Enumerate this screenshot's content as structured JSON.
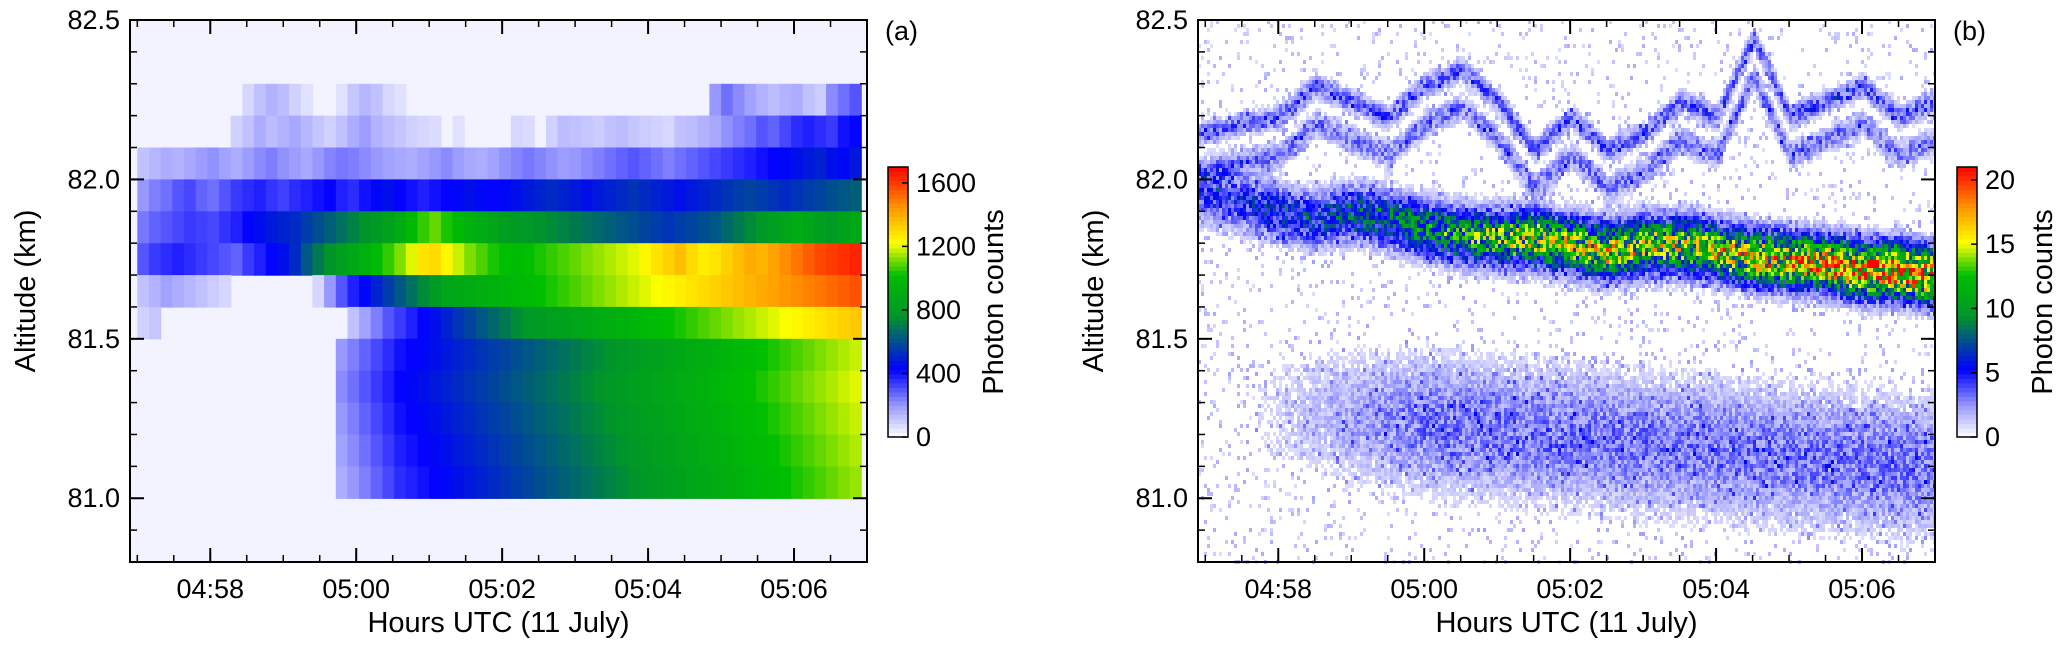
{
  "chart_data": [
    {
      "type": "heatmap",
      "panel_label": "(a)",
      "xlabel": "Hours UTC (11 July)",
      "ylabel": "Altitude (km)",
      "x_ticks": [
        "04:58",
        "05:00",
        "05:02",
        "05:04",
        "05:06"
      ],
      "x_tick_minutes": [
        298,
        300,
        302,
        304,
        306
      ],
      "xlim_minutes": [
        296.9,
        307.0
      ],
      "y_ticks": [
        "81.0",
        "81.5",
        "82.0",
        "82.5"
      ],
      "y_tick_values": [
        81.0,
        81.5,
        82.0,
        82.5
      ],
      "ylim": [
        80.8,
        82.5
      ],
      "colorbar": {
        "label": "Photon counts",
        "ticks": [
          "0",
          "400",
          "800",
          "1200",
          "1600"
        ],
        "tick_values": [
          0,
          400,
          800,
          1200,
          1600
        ],
        "range": [
          0,
          1700
        ]
      },
      "grid": false,
      "background_value": 0,
      "colors": {
        "low": "#ffffff",
        "mid_low": "#0000ff",
        "mid": "#00b000",
        "mid_high": "#ffff00",
        "high": "#ff0000"
      },
      "bin_minutes": 0.2,
      "bin_km": 0.1,
      "layers": [
        {
          "altitude_km": 82.25,
          "values": [
            0,
            0,
            0,
            0,
            0,
            0,
            0,
            0,
            0,
            80,
            120,
            150,
            130,
            90,
            60,
            0,
            0,
            60,
            110,
            140,
            120,
            80,
            60,
            0,
            0,
            0,
            0,
            0,
            0,
            0,
            0,
            0,
            0,
            0,
            0,
            0,
            0,
            0,
            0,
            0,
            0,
            0,
            0,
            0,
            0,
            0,
            0,
            0,
            0,
            200,
            260,
            220,
            180,
            150,
            130,
            150,
            160,
            120,
            100,
            220,
            260,
            300
          ]
        },
        {
          "altitude_km": 82.15,
          "values": [
            0,
            0,
            0,
            0,
            0,
            0,
            0,
            0,
            90,
            120,
            160,
            130,
            150,
            170,
            140,
            110,
            90,
            120,
            160,
            190,
            150,
            130,
            110,
            90,
            80,
            70,
            0,
            60,
            0,
            0,
            0,
            0,
            80,
            70,
            0,
            90,
            130,
            120,
            110,
            100,
            120,
            130,
            110,
            100,
            90,
            80,
            120,
            130,
            150,
            170,
            210,
            240,
            260,
            300,
            280,
            320,
            360,
            380,
            360,
            340,
            400,
            420
          ]
        },
        {
          "altitude_km": 82.05,
          "values": [
            120,
            140,
            160,
            150,
            170,
            190,
            210,
            180,
            160,
            190,
            220,
            240,
            210,
            190,
            170,
            200,
            230,
            250,
            240,
            220,
            200,
            180,
            170,
            160,
            180,
            200,
            220,
            190,
            170,
            160,
            180,
            210,
            230,
            250,
            230,
            210,
            190,
            200,
            220,
            240,
            260,
            280,
            300,
            280,
            260,
            240,
            260,
            280,
            300,
            320,
            340,
            360,
            380,
            400,
            420,
            440,
            460,
            480,
            500,
            460,
            440,
            480
          ]
        },
        {
          "altitude_km": 81.95,
          "values": [
            200,
            240,
            260,
            300,
            320,
            280,
            260,
            300,
            340,
            360,
            380,
            350,
            330,
            360,
            380,
            400,
            420,
            380,
            360,
            400,
            440,
            460,
            420,
            400,
            380,
            400,
            420,
            440,
            460,
            440,
            420,
            440,
            460,
            480,
            500,
            520,
            500,
            480,
            460,
            480,
            500,
            520,
            540,
            520,
            500,
            480,
            460,
            480,
            500,
            520,
            540,
            560,
            580,
            560,
            540,
            520,
            540,
            560,
            580,
            600,
            620,
            640
          ]
        },
        {
          "altitude_km": 81.85,
          "values": [
            250,
            280,
            300,
            320,
            340,
            330,
            320,
            350,
            380,
            420,
            450,
            480,
            500,
            520,
            560,
            600,
            640,
            680,
            720,
            760,
            800,
            840,
            900,
            980,
            1060,
            1100,
            1040,
            980,
            940,
            900,
            860,
            820,
            800,
            780,
            760,
            740,
            720,
            700,
            680,
            660,
            640,
            620,
            600,
            580,
            560,
            540,
            560,
            580,
            600,
            620,
            660,
            700,
            740,
            780,
            820,
            860,
            900,
            860,
            820,
            800,
            840,
            880
          ]
        },
        {
          "altitude_km": 81.75,
          "values": [
            300,
            340,
            360,
            380,
            360,
            340,
            320,
            300,
            280,
            340,
            380,
            420,
            460,
            520,
            620,
            700,
            760,
            820,
            880,
            940,
            1000,
            1060,
            1120,
            1200,
            1280,
            1300,
            1240,
            1180,
            1120,
            1080,
            1040,
            1020,
            1000,
            1020,
            1040,
            1060,
            1080,
            1100,
            1120,
            1140,
            1160,
            1180,
            1200,
            1240,
            1280,
            1320,
            1360,
            1300,
            1260,
            1280,
            1320,
            1360,
            1400,
            1380,
            1420,
            1460,
            1500,
            1540,
            1580,
            1600,
            1620,
            1640
          ]
        },
        {
          "altitude_km": 81.65,
          "values": [
            120,
            150,
            180,
            160,
            140,
            120,
            100,
            80,
            0,
            0,
            0,
            0,
            0,
            0,
            0,
            80,
            200,
            300,
            380,
            440,
            500,
            560,
            620,
            680,
            740,
            800,
            860,
            880,
            900,
            920,
            940,
            960,
            980,
            1000,
            1020,
            1040,
            1060,
            1080,
            1100,
            1120,
            1140,
            1160,
            1180,
            1200,
            1220,
            1240,
            1260,
            1280,
            1300,
            1320,
            1340,
            1360,
            1380,
            1400,
            1420,
            1440,
            1460,
            1480,
            1500,
            1520,
            1540,
            1560
          ]
        },
        {
          "altitude_km": 81.55,
          "values": [
            90,
            110,
            0,
            0,
            0,
            0,
            0,
            0,
            0,
            0,
            0,
            0,
            0,
            0,
            0,
            0,
            0,
            0,
            120,
            180,
            240,
            300,
            340,
            380,
            420,
            460,
            500,
            540,
            580,
            620,
            660,
            700,
            740,
            780,
            800,
            820,
            840,
            860,
            880,
            900,
            920,
            940,
            960,
            980,
            1000,
            1020,
            1040,
            1060,
            1080,
            1100,
            1120,
            1140,
            1160,
            1180,
            1200,
            1220,
            1240,
            1260,
            1280,
            1300,
            1320,
            1340
          ]
        },
        {
          "altitude_km": 81.45,
          "values": [
            0,
            0,
            0,
            0,
            0,
            0,
            0,
            0,
            0,
            0,
            0,
            0,
            0,
            0,
            0,
            0,
            0,
            200,
            240,
            280,
            320,
            360,
            400,
            420,
            440,
            460,
            480,
            500,
            520,
            540,
            560,
            580,
            600,
            620,
            640,
            660,
            680,
            700,
            720,
            740,
            760,
            780,
            800,
            820,
            840,
            860,
            880,
            900,
            920,
            940,
            960,
            980,
            1000,
            1020,
            1040,
            1060,
            1080,
            1100,
            1120,
            1140,
            1160,
            1180
          ]
        },
        {
          "altitude_km": 81.35,
          "values": [
            0,
            0,
            0,
            0,
            0,
            0,
            0,
            0,
            0,
            0,
            0,
            0,
            0,
            0,
            0,
            0,
            0,
            220,
            260,
            300,
            340,
            380,
            420,
            440,
            460,
            480,
            500,
            520,
            540,
            560,
            580,
            600,
            620,
            640,
            660,
            680,
            700,
            720,
            740,
            760,
            780,
            800,
            820,
            840,
            860,
            880,
            900,
            920,
            940,
            960,
            980,
            1000,
            1020,
            1040,
            1060,
            1080,
            1100,
            1120,
            1140,
            1160,
            1180,
            1200
          ]
        },
        {
          "altitude_km": 81.25,
          "values": [
            0,
            0,
            0,
            0,
            0,
            0,
            0,
            0,
            0,
            0,
            0,
            0,
            0,
            0,
            0,
            0,
            0,
            200,
            240,
            280,
            320,
            360,
            400,
            420,
            440,
            460,
            480,
            500,
            520,
            540,
            560,
            580,
            600,
            620,
            640,
            660,
            680,
            700,
            720,
            740,
            760,
            780,
            800,
            820,
            840,
            860,
            880,
            900,
            920,
            940,
            960,
            980,
            1000,
            1020,
            1040,
            1060,
            1080,
            1100,
            1120,
            1140,
            1160,
            1180
          ]
        },
        {
          "altitude_km": 81.15,
          "values": [
            0,
            0,
            0,
            0,
            0,
            0,
            0,
            0,
            0,
            0,
            0,
            0,
            0,
            0,
            0,
            0,
            0,
            180,
            220,
            260,
            300,
            340,
            380,
            400,
            420,
            440,
            460,
            480,
            500,
            520,
            540,
            560,
            580,
            600,
            620,
            640,
            660,
            680,
            700,
            720,
            740,
            760,
            780,
            800,
            820,
            840,
            860,
            880,
            900,
            920,
            940,
            960,
            980,
            1000,
            1020,
            1040,
            1060,
            1080,
            1100,
            1120,
            1140,
            1160
          ]
        },
        {
          "altitude_km": 81.05,
          "values": [
            0,
            0,
            0,
            0,
            0,
            0,
            0,
            0,
            0,
            0,
            0,
            0,
            0,
            0,
            0,
            0,
            0,
            160,
            200,
            240,
            280,
            320,
            360,
            380,
            400,
            420,
            440,
            460,
            480,
            500,
            520,
            540,
            560,
            580,
            600,
            620,
            640,
            660,
            680,
            700,
            720,
            740,
            760,
            780,
            800,
            820,
            840,
            860,
            880,
            900,
            920,
            940,
            960,
            980,
            1000,
            1020,
            1040,
            1060,
            1080,
            1100,
            1120,
            1140
          ]
        },
        {
          "altitude_km": 80.95,
          "values": [
            0,
            0,
            0,
            0,
            0,
            0,
            0,
            0,
            0,
            0,
            0,
            0,
            0,
            0,
            0,
            0,
            0,
            0,
            0,
            0,
            0,
            0,
            0,
            0,
            0,
            0,
            0,
            0,
            0,
            0,
            0,
            0,
            0,
            0,
            0,
            0,
            0,
            0,
            0,
            0,
            0,
            0,
            0,
            0,
            0,
            0,
            0,
            0,
            0,
            0,
            0,
            0,
            0,
            0,
            0,
            0,
            0,
            0,
            0,
            0,
            0,
            0
          ]
        }
      ]
    },
    {
      "type": "heatmap",
      "panel_label": "(b)",
      "xlabel": "Hours UTC (11 July)",
      "ylabel": "Altitude (km)",
      "x_ticks": [
        "04:58",
        "05:00",
        "05:02",
        "05:04",
        "05:06"
      ],
      "x_tick_minutes": [
        298,
        300,
        302,
        304,
        306
      ],
      "xlim_minutes": [
        296.9,
        307.0
      ],
      "y_ticks": [
        "81.0",
        "81.5",
        "82.0",
        "82.5"
      ],
      "y_tick_values": [
        81.0,
        81.5,
        82.0,
        82.5
      ],
      "ylim": [
        80.8,
        82.5
      ],
      "colorbar": {
        "label": "Photon counts",
        "ticks": [
          "0",
          "5",
          "10",
          "15",
          "20"
        ],
        "tick_values": [
          0,
          5,
          10,
          15,
          20
        ],
        "range": [
          0,
          21
        ]
      },
      "grid": false,
      "background_value": 0,
      "colors": {
        "low": "#ffffff",
        "mid_low": "#0000ff",
        "mid": "#00b000",
        "mid_high": "#ffff00",
        "high": "#ff0000"
      },
      "layers": [
        {
          "altitude_km": 82.25,
          "values_approx": "faint wavy layer, ~3 counts"
        },
        {
          "altitude_km": 82.1,
          "values_approx": "wavy layer, ~4 counts"
        },
        {
          "altitude_km": 81.85,
          "values_approx": "main layer, 8-18 counts, peak ~18 near 05:06"
        },
        {
          "altitude_km": 81.3,
          "values_approx": "diffuse layer, 2-5 counts"
        }
      ],
      "trace_minutes": [
        297.0,
        297.5,
        298.0,
        298.5,
        299.0,
        299.5,
        300.0,
        300.5,
        301.0,
        301.5,
        302.0,
        302.5,
        303.0,
        303.5,
        304.0,
        304.5,
        305.0,
        305.5,
        306.0,
        306.5,
        307.0
      ],
      "upper_layer_altitude_km": [
        82.15,
        82.18,
        82.2,
        82.3,
        82.25,
        82.2,
        82.3,
        82.35,
        82.25,
        82.1,
        82.2,
        82.1,
        82.15,
        82.25,
        82.2,
        82.45,
        82.2,
        82.25,
        82.3,
        82.2,
        82.25
      ],
      "main_layer_altitude_km": [
        81.95,
        81.93,
        81.9,
        81.88,
        81.9,
        81.88,
        81.85,
        81.83,
        81.82,
        81.82,
        81.8,
        81.78,
        81.8,
        81.8,
        81.78,
        81.76,
        81.75,
        81.74,
        81.72,
        81.72,
        81.7
      ],
      "main_layer_peak_counts": [
        4,
        5,
        6,
        6,
        7,
        8,
        9,
        10,
        12,
        13,
        13,
        14,
        13,
        13,
        14,
        14,
        15,
        16,
        17,
        18,
        16
      ]
    }
  ]
}
